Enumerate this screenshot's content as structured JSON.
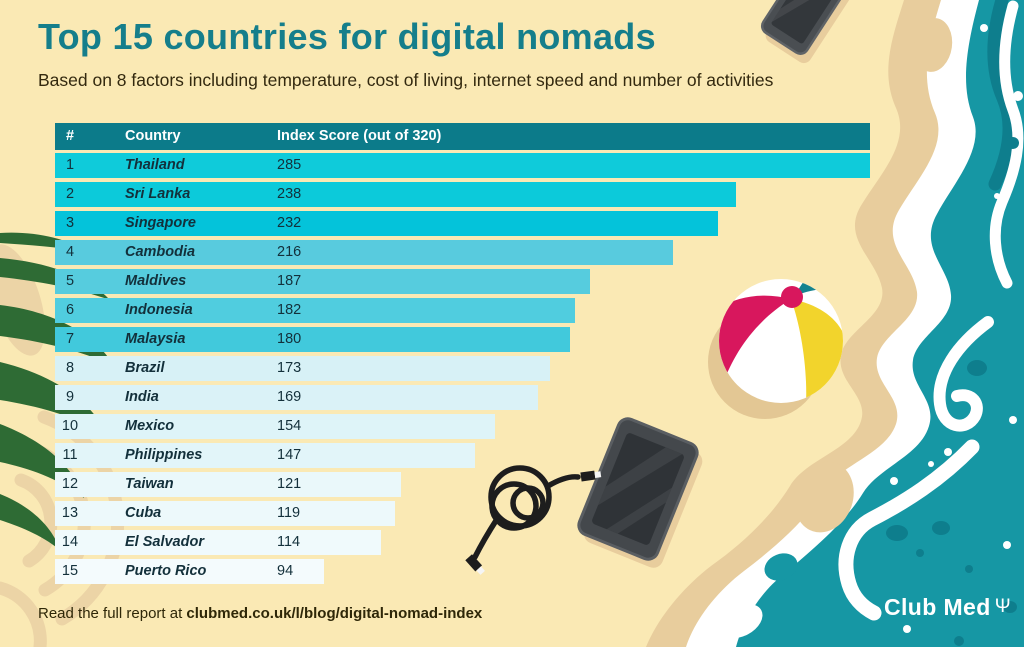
{
  "title": "Top 15 countries for digital nomads",
  "subtitle": "Based on 8 factors including temperature, cost of living, internet speed and number of activities",
  "table": {
    "headers": {
      "rank": "#",
      "country": "Country",
      "score": "Index Score (out of 320)"
    },
    "rows": [
      {
        "rank": "1",
        "country": "Thailand",
        "score": "285",
        "color": "#0FCBDA"
      },
      {
        "rank": "2",
        "country": "Sri Lanka",
        "score": "238",
        "color": "#0CCADA"
      },
      {
        "rank": "3",
        "country": "Singapore",
        "score": "232",
        "color": "#04C3DA"
      },
      {
        "rank": "4",
        "country": "Cambodia",
        "score": "216",
        "color": "#58CBDE"
      },
      {
        "rank": "5",
        "country": "Maldives",
        "score": "187",
        "color": "#56CCDE"
      },
      {
        "rank": "6",
        "country": "Indonesia",
        "score": "182",
        "color": "#50CDDF"
      },
      {
        "rank": "7",
        "country": "Malaysia",
        "score": "180",
        "color": "#41C9DC"
      },
      {
        "rank": "8",
        "country": "Brazil",
        "score": "173",
        "color": "#D7F1F6"
      },
      {
        "rank": "9",
        "country": "India",
        "score": "169",
        "color": "#DAF2F7"
      },
      {
        "rank": "10",
        "country": "Mexico",
        "score": "154",
        "color": "#DEF4F8"
      },
      {
        "rank": "11",
        "country": "Philippines",
        "score": "147",
        "color": "#E2F5F9"
      },
      {
        "rank": "12",
        "country": "Taiwan",
        "score": "121",
        "color": "#EAF8FA"
      },
      {
        "rank": "13",
        "country": "Cuba",
        "score": "119",
        "color": "#EDF9FB"
      },
      {
        "rank": "14",
        "country": "El Salvador",
        "score": "114",
        "color": "#F0FAFC"
      },
      {
        "rank": "15",
        "country": "Puerto Rico",
        "score": "94",
        "color": "#F4FBFD"
      }
    ]
  },
  "footer": {
    "prefix": "Read the full report at ",
    "url": "clubmed.co.uk/l/blog/digital-nomad-index"
  },
  "brand": {
    "name": "Club Med",
    "trident_glyph": "Ψ"
  },
  "colors": {
    "background": "#FAE9B4",
    "title": "#157E8B",
    "body_text": "#33290F",
    "header_bg": "#0C7B8A",
    "header_text": "#FFFFFF",
    "row_text": "#13303B",
    "ocean": "#1697A4",
    "ocean_dark": "#0E7E8D",
    "sand_band": "#E8CD9D",
    "foam": "#FFFFFF",
    "palm_green": "#2E6B34",
    "ball_red": "#D8175D",
    "ball_yellow": "#F2D42C"
  },
  "chart_data": {
    "type": "bar",
    "orientation": "horizontal",
    "title": "Top 15 countries for digital nomads",
    "subtitle": "Based on 8 factors including temperature, cost of living, internet speed and number of activities",
    "categories": [
      "Thailand",
      "Sri Lanka",
      "Singapore",
      "Cambodia",
      "Maldives",
      "Indonesia",
      "Malaysia",
      "Brazil",
      "India",
      "Mexico",
      "Philippines",
      "Taiwan",
      "Cuba",
      "El Salvador",
      "Puerto Rico"
    ],
    "values": [
      285,
      238,
      232,
      216,
      187,
      182,
      180,
      173,
      169,
      154,
      147,
      121,
      119,
      114,
      94
    ],
    "xlabel": "Index Score (out of 320)",
    "max_possible_score": 320,
    "bar_scale_max": 285,
    "source": "clubmed.co.uk/l/blog/digital-nomad-index"
  }
}
